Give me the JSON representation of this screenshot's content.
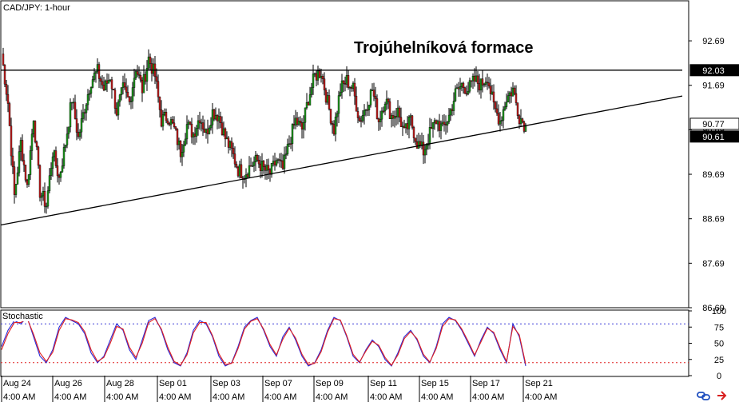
{
  "chart_data": [
    {
      "type": "candlestick",
      "symbol_label": "CAD/JPY: 1-hour",
      "title": "Trojúhelníková formace",
      "y_ticks": [
        92.69,
        91.69,
        90.69,
        89.69,
        88.69,
        87.69,
        86.69
      ],
      "ylim": [
        86.69,
        93.59
      ],
      "x_date_labels": [
        "Aug 24",
        "Aug 26",
        "Aug 28",
        "Sep 01",
        "Sep 03",
        "Sep 07",
        "Sep 09",
        "Sep 11",
        "Sep 15",
        "Sep 17",
        "Sep 21"
      ],
      "x_time_labels": [
        "4:00 AM",
        "4:00 AM",
        "4:00 AM",
        "4:00 AM",
        "4:00 AM",
        "4:00 AM",
        "4:00 AM",
        "4:00 AM",
        "4:00 AM",
        "4:00 AM",
        "4:00 AM"
      ],
      "price_badges": [
        {
          "value": "92.03",
          "style": "dark"
        },
        {
          "value": "90.77",
          "style": "light"
        },
        {
          "value": "90.61",
          "style": "dark"
        }
      ],
      "trendlines": [
        {
          "name": "resistance",
          "from": [
            0,
            92.03
          ],
          "to": [
            100,
            92.03
          ]
        },
        {
          "name": "rising-support",
          "from": [
            0,
            88.55
          ],
          "to": [
            100,
            91.45
          ]
        }
      ],
      "approx_close_path": [
        [
          0,
          92.4
        ],
        [
          1,
          91.3
        ],
        [
          2,
          89.2
        ],
        [
          3,
          90.4
        ],
        [
          4,
          89.4
        ],
        [
          5,
          91.0
        ],
        [
          6,
          89.3
        ],
        [
          7,
          89.0
        ],
        [
          8,
          90.2
        ],
        [
          9,
          89.6
        ],
        [
          10,
          90.4
        ],
        [
          11,
          91.4
        ],
        [
          12,
          90.5
        ],
        [
          13,
          91.2
        ],
        [
          14,
          91.8
        ],
        [
          15,
          92.0
        ],
        [
          16,
          91.6
        ],
        [
          17,
          91.9
        ],
        [
          18,
          91.1
        ],
        [
          19,
          91.6
        ],
        [
          20,
          91.3
        ],
        [
          21,
          92.1
        ],
        [
          22,
          91.6
        ],
        [
          23,
          92.3
        ],
        [
          24,
          91.9
        ],
        [
          25,
          90.9
        ],
        [
          26,
          91.0
        ],
        [
          27,
          90.7
        ],
        [
          28,
          90.2
        ],
        [
          29,
          90.8
        ],
        [
          30,
          90.6
        ],
        [
          31,
          91.0
        ],
        [
          32,
          90.6
        ],
        [
          33,
          91.1
        ],
        [
          34,
          91.0
        ],
        [
          35,
          90.5
        ],
        [
          36,
          90.2
        ],
        [
          37,
          89.8
        ],
        [
          38,
          89.7
        ],
        [
          39,
          89.9
        ],
        [
          40,
          90.0
        ],
        [
          41,
          89.8
        ],
        [
          42,
          89.7
        ],
        [
          43,
          90.0
        ],
        [
          44,
          89.8
        ],
        [
          45,
          90.4
        ],
        [
          46,
          90.9
        ],
        [
          47,
          90.7
        ],
        [
          48,
          91.4
        ],
        [
          49,
          91.9
        ],
        [
          50,
          92.0
        ],
        [
          51,
          91.3
        ],
        [
          52,
          90.7
        ],
        [
          53,
          91.6
        ],
        [
          54,
          91.8
        ],
        [
          55,
          91.6
        ],
        [
          56,
          90.9
        ],
        [
          57,
          91.2
        ],
        [
          58,
          91.6
        ],
        [
          59,
          90.9
        ],
        [
          60,
          91.4
        ],
        [
          61,
          91.0
        ],
        [
          62,
          91.1
        ],
        [
          63,
          90.6
        ],
        [
          64,
          90.9
        ],
        [
          65,
          90.4
        ],
        [
          66,
          90.2
        ],
        [
          67,
          90.6
        ],
        [
          68,
          90.9
        ],
        [
          69,
          90.7
        ],
        [
          70,
          91.0
        ],
        [
          71,
          91.5
        ],
        [
          72,
          91.7
        ],
        [
          73,
          91.6
        ],
        [
          74,
          91.8
        ],
        [
          75,
          91.7
        ],
        [
          76,
          91.9
        ],
        [
          77,
          91.2
        ],
        [
          78,
          90.9
        ],
        [
          79,
          91.4
        ],
        [
          80,
          91.6
        ],
        [
          81,
          91.0
        ],
        [
          82,
          90.77
        ]
      ]
    },
    {
      "type": "line",
      "title": "Stochastic",
      "y_ticks": [
        100,
        75,
        50,
        25,
        0
      ],
      "ylim": [
        0,
        100
      ],
      "levels": [
        80,
        20
      ],
      "series": [
        {
          "color": "#2b2bd8",
          "values": [
            45,
            70,
            85,
            80,
            90,
            60,
            30,
            20,
            40,
            75,
            90,
            85,
            80,
            65,
            35,
            20,
            30,
            55,
            80,
            70,
            40,
            25,
            55,
            85,
            90,
            70,
            40,
            20,
            15,
            35,
            70,
            85,
            80,
            60,
            30,
            15,
            20,
            45,
            75,
            85,
            90,
            70,
            45,
            30,
            60,
            75,
            55,
            30,
            15,
            20,
            40,
            70,
            90,
            85,
            60,
            30,
            20,
            40,
            55,
            45,
            25,
            15,
            35,
            60,
            70,
            55,
            30,
            20,
            45,
            80,
            90,
            85,
            70,
            50,
            30,
            55,
            75,
            65,
            40,
            20,
            80,
            60,
            15
          ]
        },
        {
          "color": "#e02020",
          "values": [
            40,
            65,
            82,
            82,
            88,
            64,
            35,
            22,
            36,
            70,
            88,
            86,
            82,
            68,
            40,
            22,
            28,
            50,
            76,
            72,
            44,
            28,
            50,
            82,
            88,
            72,
            44,
            22,
            16,
            32,
            66,
            82,
            82,
            62,
            34,
            17,
            19,
            42,
            72,
            84,
            88,
            72,
            48,
            32,
            56,
            73,
            58,
            33,
            17,
            19,
            37,
            67,
            88,
            86,
            62,
            33,
            21,
            38,
            53,
            47,
            28,
            16,
            32,
            57,
            68,
            57,
            33,
            21,
            42,
            76,
            88,
            86,
            72,
            53,
            32,
            52,
            73,
            67,
            43,
            22,
            76,
            63,
            18
          ]
        }
      ]
    }
  ]
}
